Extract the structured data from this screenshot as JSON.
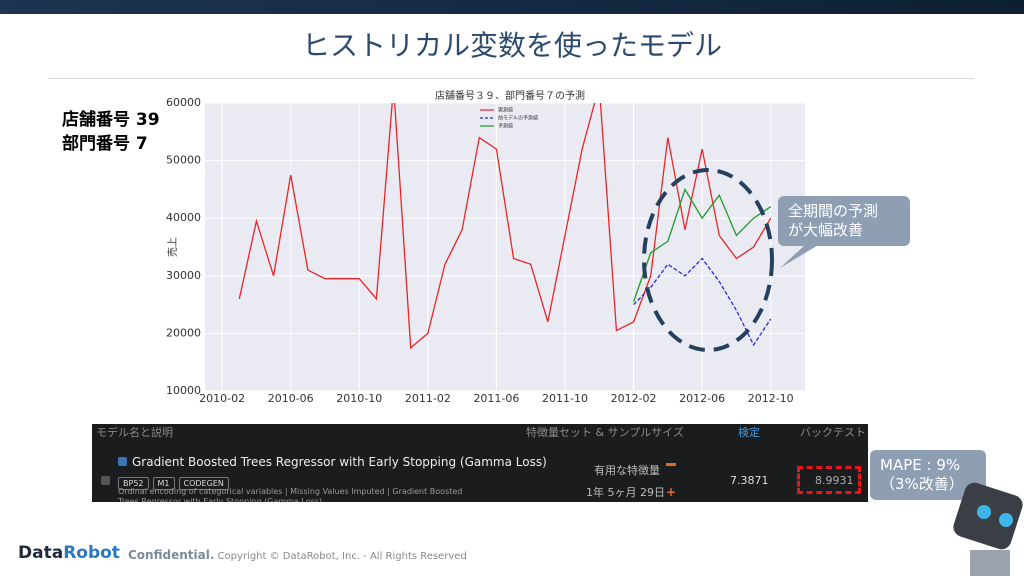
{
  "slide": {
    "title": "ヒストリカル変数を使ったモデル",
    "store_label": "店舗番号 39",
    "dept_label": "部門番号 7",
    "callout_chart": [
      "全期間の予測",
      "が大幅改善"
    ],
    "callout_mape": [
      "MAPE : 9%",
      "（3%改善）"
    ]
  },
  "chart_data": {
    "type": "line",
    "title": "店舗番号３９、部門番号７の予測",
    "y_label": "売上",
    "x": [
      "2010-03",
      "2010-04",
      "2010-05",
      "2010-06",
      "2010-07",
      "2010-08",
      "2010-09",
      "2010-10",
      "2010-11",
      "2010-12",
      "2011-01",
      "2011-02",
      "2011-03",
      "2011-04",
      "2011-05",
      "2011-06",
      "2011-07",
      "2011-08",
      "2011-09",
      "2011-10",
      "2011-11",
      "2011-12",
      "2012-01",
      "2012-02",
      "2012-03",
      "2012-04",
      "2012-05",
      "2012-06",
      "2012-07",
      "2012-08",
      "2012-09",
      "2012-10"
    ],
    "series": [
      {
        "name": "実測値",
        "color": "#e8262a",
        "dash": false,
        "values": [
          26000,
          39500,
          30000,
          47500,
          31000,
          29500,
          29500,
          29500,
          26000,
          63000,
          17500,
          20000,
          32000,
          38000,
          54000,
          52000,
          33000,
          32000,
          22000,
          37000,
          52000,
          63000,
          20500,
          22000,
          30000,
          54000,
          38000,
          52000,
          37000,
          33000,
          35000,
          40000
        ]
      },
      {
        "name": "前モデルの予測値",
        "color": "#2a2adc",
        "dash": true,
        "values": [
          null,
          null,
          null,
          null,
          null,
          null,
          null,
          null,
          null,
          null,
          null,
          null,
          null,
          null,
          null,
          null,
          null,
          null,
          null,
          null,
          null,
          null,
          null,
          25000,
          28000,
          32000,
          30000,
          33000,
          29000,
          24000,
          18000,
          22500
        ]
      },
      {
        "name": "予測値",
        "color": "#1f9a2a",
        "dash": false,
        "values": [
          null,
          null,
          null,
          null,
          null,
          null,
          null,
          null,
          null,
          null,
          null,
          null,
          null,
          null,
          null,
          null,
          null,
          null,
          null,
          null,
          null,
          null,
          null,
          25500,
          34000,
          36000,
          45000,
          40000,
          44000,
          37000,
          40000,
          42000
        ]
      }
    ],
    "xlim": [
      "2010-01",
      "2012-12"
    ],
    "xticks": [
      "2010-02",
      "2010-06",
      "2010-10",
      "2011-02",
      "2011-06",
      "2011-10",
      "2012-02",
      "2012-06",
      "2012-10"
    ],
    "ylim": [
      10000,
      60000
    ],
    "yticks": [
      10000,
      20000,
      30000,
      40000,
      50000,
      60000
    ],
    "grid": true,
    "legend": "top"
  },
  "table": {
    "headers": [
      "モデル名と説明",
      "特徴量セット & サンプルサイズ",
      "検定",
      "バックテスト"
    ],
    "model_name": "Gradient Boosted Trees Regressor with Early Stopping (Gamma Loss)",
    "badges": [
      "BP52",
      "M1",
      "CODEGEN"
    ],
    "description": "Ordinal encoding of categorical variables | Missing Values Imputed | Gradient Boosted Trees Regressor with Early Stopping (Gamma Loss)",
    "feature_set": "有用な特徴量",
    "sample_size": "1年 5ヶ月 29日",
    "validation": "7.3871",
    "backtest": "8.9931"
  },
  "footer": {
    "brand_a": "Data",
    "brand_b": "Robot",
    "confidential": "Confidential.",
    "copyright": "Copyright © DataRobot, Inc. - All Rights Reserved"
  }
}
